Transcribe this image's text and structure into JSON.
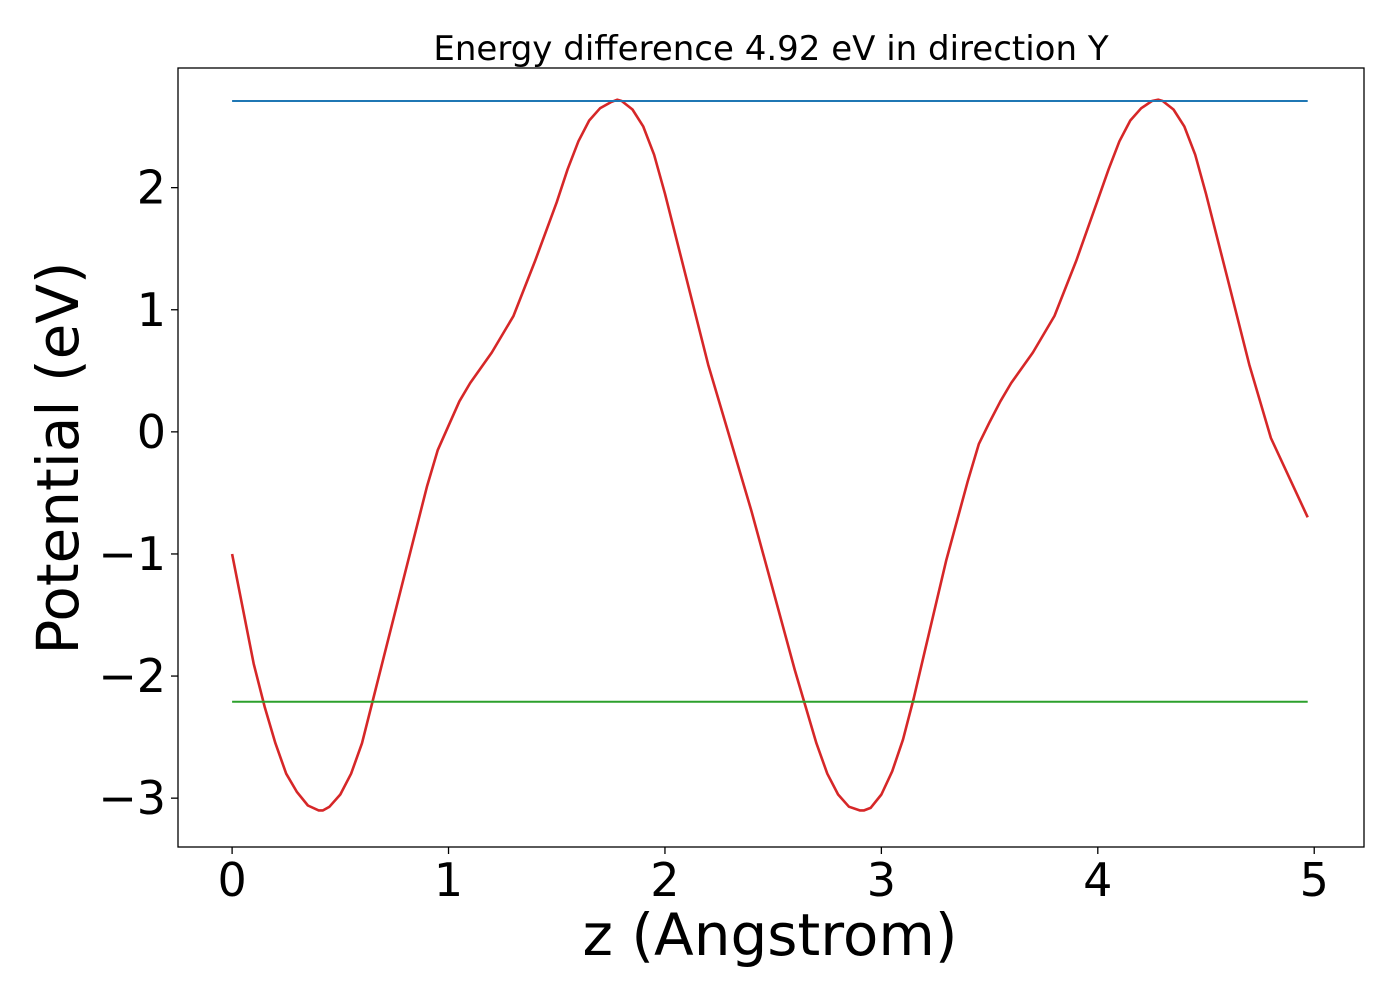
{
  "chart_data": {
    "type": "line",
    "title": "Energy difference 4.92 eV in direction Y",
    "xlabel": "z (Angstrom)",
    "ylabel": "Potential (eV)",
    "xlim": [
      -0.25,
      5.23
    ],
    "ylim": [
      -3.4,
      2.98
    ],
    "xticks": [
      0,
      1,
      2,
      3,
      4,
      5
    ],
    "xtick_labels": [
      "0",
      "1",
      "2",
      "3",
      "4",
      "5"
    ],
    "yticks": [
      -3,
      -2,
      -1,
      0,
      1,
      2
    ],
    "ytick_labels": [
      "−3",
      "−2",
      "−1",
      "0",
      "1",
      "2"
    ],
    "grid": false,
    "series": [
      {
        "color": "#d62728",
        "x": [
          0,
          0.05,
          0.1,
          0.15,
          0.2,
          0.25,
          0.3,
          0.35,
          0.4,
          0.42,
          0.45,
          0.5,
          0.55,
          0.6,
          0.65,
          0.7,
          0.8,
          0.9,
          0.95,
          1.0,
          1.05,
          1.1,
          1.2,
          1.3,
          1.4,
          1.5,
          1.55,
          1.6,
          1.65,
          1.7,
          1.75,
          1.78,
          1.8,
          1.85,
          1.9,
          1.95,
          2.0,
          2.1,
          2.2,
          2.3,
          2.4,
          2.5,
          2.6,
          2.7,
          2.75,
          2.8,
          2.85,
          2.9,
          2.92,
          2.95,
          3.0,
          3.05,
          3.1,
          3.15,
          3.2,
          3.3,
          3.4,
          3.45,
          3.5,
          3.55,
          3.6,
          3.7,
          3.8,
          3.9,
          4.0,
          4.05,
          4.1,
          4.15,
          4.2,
          4.25,
          4.28,
          4.3,
          4.35,
          4.4,
          4.45,
          4.5,
          4.6,
          4.7,
          4.8,
          4.97
        ],
        "y": [
          -1.0,
          -1.45,
          -1.9,
          -2.25,
          -2.55,
          -2.8,
          -2.95,
          -3.06,
          -3.1,
          -3.1,
          -3.07,
          -2.97,
          -2.8,
          -2.55,
          -2.2,
          -1.85,
          -1.15,
          -0.45,
          -0.15,
          0.05,
          0.25,
          0.4,
          0.65,
          0.95,
          1.4,
          1.88,
          2.15,
          2.38,
          2.55,
          2.65,
          2.7,
          2.72,
          2.71,
          2.64,
          2.5,
          2.27,
          1.95,
          1.25,
          0.55,
          -0.05,
          -0.65,
          -1.3,
          -1.95,
          -2.55,
          -2.8,
          -2.97,
          -3.07,
          -3.1,
          -3.1,
          -3.08,
          -2.97,
          -2.78,
          -2.52,
          -2.18,
          -1.8,
          -1.05,
          -0.4,
          -0.1,
          0.08,
          0.25,
          0.4,
          0.65,
          0.95,
          1.4,
          1.9,
          2.15,
          2.38,
          2.55,
          2.65,
          2.71,
          2.72,
          2.71,
          2.64,
          2.5,
          2.27,
          1.95,
          1.25,
          0.55,
          -0.05,
          -0.7
        ]
      },
      {
        "color": "#1f77b4",
        "x": [
          0,
          4.97
        ],
        "y": [
          2.71,
          2.71
        ]
      },
      {
        "color": "#2ca02c",
        "x": [
          0,
          4.97
        ],
        "y": [
          -2.21,
          -2.21
        ]
      }
    ]
  }
}
